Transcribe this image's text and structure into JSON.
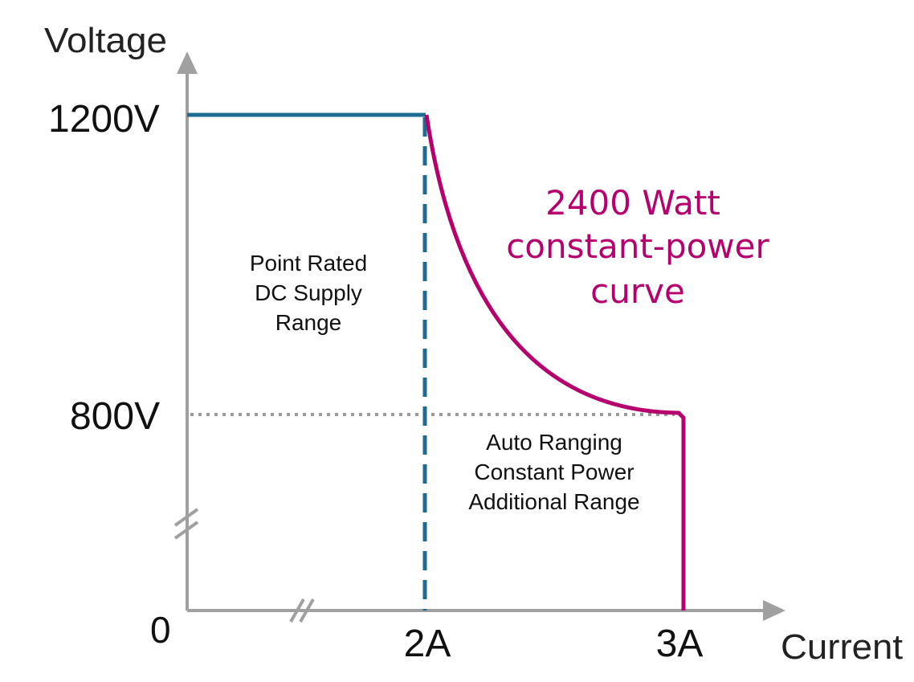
{
  "axes": {
    "y_title": "Voltage",
    "x_title": "Current",
    "y_ticks": [
      "1200V",
      "800V"
    ],
    "origin_label": "0",
    "x_ticks": [
      "2A",
      "3A"
    ]
  },
  "regions": {
    "point_rated": [
      "Point Rated",
      "DC Supply",
      "Range"
    ],
    "auto_ranging": [
      "Auto Ranging",
      "Constant Power",
      "Additional Range"
    ]
  },
  "curve_label": [
    "2400 Watt",
    "constant-power",
    "curve"
  ],
  "colors": {
    "axis": "#a0a0a0",
    "rated_range": "#1f6b94",
    "power_curve": "#b5006e",
    "dotted_guide": "#9a9a9a",
    "text": "#111111"
  },
  "icons": {
    "y_axis_arrow": "arrow-up-icon",
    "x_axis_arrow": "arrow-right-icon",
    "axis_break": "axis-break-icon"
  }
}
